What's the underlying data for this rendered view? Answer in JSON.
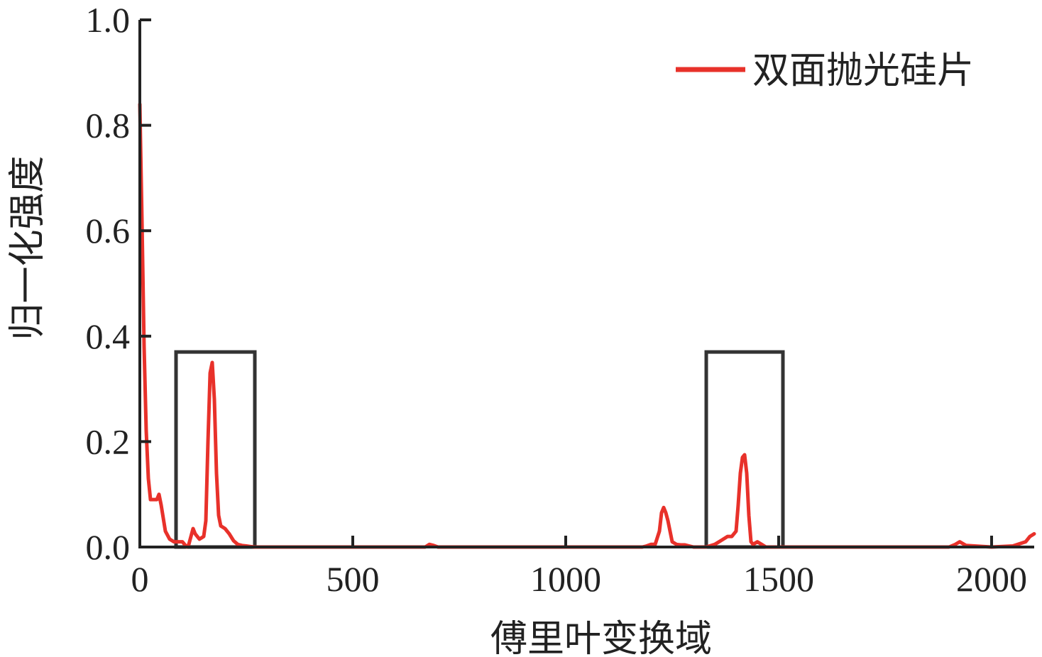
{
  "chart_data": {
    "type": "line",
    "xlabel": "傅里叶变换域",
    "ylabel": "归一化强度",
    "xlim": [
      0,
      2100
    ],
    "ylim": [
      0,
      1.0
    ],
    "x_ticks": [
      0,
      500,
      1000,
      1500,
      2000
    ],
    "x_tick_labels": [
      "0",
      "500",
      "1000",
      "1500",
      "2000"
    ],
    "y_ticks": [
      0.0,
      0.2,
      0.4,
      0.6,
      0.8,
      1.0
    ],
    "y_tick_labels": [
      "0.0",
      "0.2",
      "0.4",
      "0.6",
      "0.8",
      "1.0"
    ],
    "grid": false,
    "legend_position": "top-right",
    "series": [
      {
        "name": "双面抛光硅片",
        "color": "#e8312a",
        "x": [
          0,
          5,
          10,
          15,
          20,
          25,
          30,
          40,
          45,
          50,
          60,
          70,
          80,
          90,
          100,
          110,
          115,
          120,
          125,
          130,
          140,
          150,
          155,
          160,
          165,
          170,
          175,
          180,
          185,
          190,
          200,
          210,
          220,
          230,
          240,
          250,
          260,
          270,
          300,
          400,
          500,
          600,
          670,
          680,
          690,
          700,
          800,
          900,
          1000,
          1100,
          1180,
          1190,
          1200,
          1210,
          1220,
          1225,
          1230,
          1235,
          1240,
          1245,
          1250,
          1260,
          1270,
          1280,
          1300,
          1330,
          1350,
          1370,
          1380,
          1390,
          1400,
          1405,
          1410,
          1415,
          1420,
          1425,
          1430,
          1435,
          1440,
          1450,
          1460,
          1470,
          1480,
          1500,
          1600,
          1700,
          1800,
          1900,
          1915,
          1925,
          1940,
          2000,
          2050,
          2080,
          2090,
          2100
        ],
        "y": [
          0.84,
          0.62,
          0.38,
          0.22,
          0.13,
          0.09,
          0.09,
          0.09,
          0.1,
          0.08,
          0.03,
          0.015,
          0.01,
          0.01,
          0.01,
          0.0,
          0.005,
          0.02,
          0.035,
          0.025,
          0.015,
          0.02,
          0.05,
          0.2,
          0.33,
          0.35,
          0.28,
          0.14,
          0.06,
          0.04,
          0.035,
          0.025,
          0.012,
          0.005,
          0.003,
          0.002,
          0.001,
          0.0,
          0.0,
          0.0,
          0.0,
          0.0,
          0.0,
          0.005,
          0.003,
          0.0,
          0.0,
          0.0,
          0.0,
          0.0,
          0.0,
          0.002,
          0.005,
          0.005,
          0.03,
          0.065,
          0.075,
          0.065,
          0.05,
          0.03,
          0.01,
          0.005,
          0.004,
          0.004,
          0.0,
          0.0,
          0.005,
          0.015,
          0.02,
          0.02,
          0.03,
          0.08,
          0.14,
          0.17,
          0.175,
          0.14,
          0.06,
          0.01,
          0.005,
          0.01,
          0.005,
          0.0,
          0.0,
          0.0,
          0.0,
          0.0,
          0.0,
          0.0,
          0.005,
          0.01,
          0.003,
          0.0,
          0.002,
          0.01,
          0.02,
          0.025
        ]
      }
    ],
    "annotations": [
      {
        "type": "rectangle",
        "x_range": [
          85,
          270
        ],
        "y_range": [
          0,
          0.37
        ],
        "color": "#333333"
      },
      {
        "type": "rectangle",
        "x_range": [
          1330,
          1510
        ],
        "y_range": [
          0,
          0.37
        ],
        "color": "#333333"
      }
    ]
  }
}
